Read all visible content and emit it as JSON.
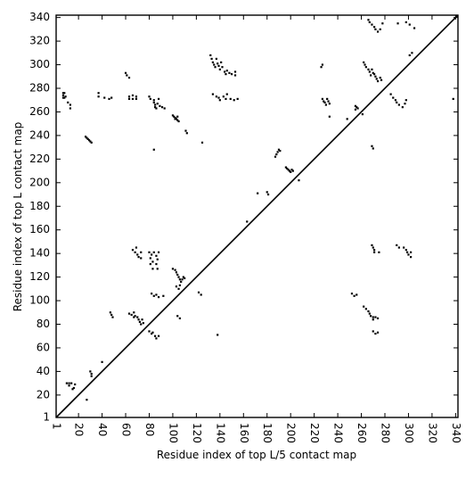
{
  "chart_data": {
    "type": "scatter",
    "title": "",
    "xlabel": "Residue index of top L/5 contact map",
    "ylabel": "Residue index of top L contact map",
    "xlim": [
      1,
      342
    ],
    "ylim": [
      1,
      342
    ],
    "x_ticks": [
      1,
      20,
      40,
      60,
      80,
      100,
      120,
      140,
      160,
      180,
      200,
      220,
      240,
      260,
      280,
      300,
      320,
      340
    ],
    "y_ticks": [
      1,
      20,
      40,
      60,
      80,
      100,
      120,
      140,
      160,
      180,
      200,
      220,
      240,
      260,
      280,
      300,
      320,
      340
    ],
    "x_tick_labels": [
      "1",
      "20",
      "40",
      "60",
      "80",
      "100",
      "120",
      "140",
      "160",
      "180",
      "200",
      "220",
      "240",
      "260",
      "280",
      "300",
      "320",
      "340"
    ],
    "y_tick_labels": [
      "1",
      "20",
      "40",
      "60",
      "80",
      "100",
      "120",
      "140",
      "160",
      "180",
      "200",
      "220",
      "240",
      "260",
      "280",
      "300",
      "320",
      "340"
    ],
    "grid": false,
    "diagonal": true,
    "marker_color": "#000000",
    "series": [
      {
        "name": "",
        "points": [
          [
            7,
            276
          ],
          [
            7,
            274
          ],
          [
            7,
            272
          ],
          [
            8,
            276
          ],
          [
            8,
            272
          ],
          [
            9,
            273
          ],
          [
            11,
            268
          ],
          [
            13,
            266
          ],
          [
            13,
            263
          ],
          [
            37,
            276
          ],
          [
            37,
            273
          ],
          [
            42,
            272
          ],
          [
            46,
            271
          ],
          [
            48,
            272
          ],
          [
            60,
            293
          ],
          [
            61,
            291
          ],
          [
            63,
            289
          ],
          [
            63,
            273
          ],
          [
            63,
            271
          ],
          [
            66,
            274
          ],
          [
            66,
            271
          ],
          [
            69,
            273
          ],
          [
            69,
            271
          ],
          [
            80,
            273
          ],
          [
            81,
            271
          ],
          [
            84,
            270
          ],
          [
            84,
            268
          ],
          [
            85,
            266
          ],
          [
            85,
            264
          ],
          [
            86,
            263
          ],
          [
            87,
            267
          ],
          [
            88,
            271
          ],
          [
            89,
            265
          ],
          [
            91,
            264
          ],
          [
            93,
            263
          ],
          [
            100,
            257
          ],
          [
            101,
            256
          ],
          [
            102,
            255
          ],
          [
            103,
            254
          ],
          [
            104,
            253
          ],
          [
            105,
            252
          ],
          [
            102,
            254
          ],
          [
            104,
            256
          ],
          [
            111,
            244
          ],
          [
            112,
            242
          ],
          [
            125,
            234
          ],
          [
            84,
            228
          ],
          [
            26,
            239
          ],
          [
            27,
            238
          ],
          [
            28,
            237
          ],
          [
            29,
            236
          ],
          [
            30,
            235
          ],
          [
            31,
            234
          ],
          [
            132,
            308
          ],
          [
            133,
            305
          ],
          [
            134,
            302
          ],
          [
            135,
            300
          ],
          [
            136,
            298
          ],
          [
            137,
            305
          ],
          [
            138,
            301
          ],
          [
            139,
            299
          ],
          [
            140,
            296
          ],
          [
            141,
            302
          ],
          [
            142,
            298
          ],
          [
            144,
            294
          ],
          [
            145,
            292
          ],
          [
            146,
            295
          ],
          [
            148,
            293
          ],
          [
            150,
            292
          ],
          [
            153,
            294
          ],
          [
            153,
            291
          ],
          [
            134,
            275
          ],
          [
            137,
            273
          ],
          [
            139,
            272
          ],
          [
            140,
            270
          ],
          [
            143,
            273
          ],
          [
            145,
            271
          ],
          [
            146,
            275
          ],
          [
            149,
            271
          ],
          [
            152,
            270
          ],
          [
            155,
            271
          ],
          [
            187,
            222
          ],
          [
            188,
            224
          ],
          [
            189,
            226
          ],
          [
            190,
            228
          ],
          [
            191,
            227
          ],
          [
            196,
            213
          ],
          [
            197,
            212
          ],
          [
            198,
            211
          ],
          [
            199,
            210
          ],
          [
            200,
            209
          ],
          [
            201,
            211
          ],
          [
            202,
            210
          ],
          [
            207,
            202
          ],
          [
            172,
            191
          ],
          [
            180,
            192
          ],
          [
            181,
            190
          ],
          [
            163,
            167
          ],
          [
            226,
            298
          ],
          [
            227,
            300
          ],
          [
            227,
            271
          ],
          [
            228,
            269
          ],
          [
            229,
            268
          ],
          [
            231,
            271
          ],
          [
            232,
            269
          ],
          [
            233,
            267
          ],
          [
            230,
            266
          ],
          [
            233,
            256
          ],
          [
            248,
            254
          ],
          [
            255,
            265
          ],
          [
            256,
            264
          ],
          [
            255,
            262
          ],
          [
            257,
            263
          ],
          [
            261,
            258
          ],
          [
            262,
            302
          ],
          [
            263,
            300
          ],
          [
            264,
            298
          ],
          [
            266,
            296
          ],
          [
            267,
            294
          ],
          [
            269,
            296
          ],
          [
            271,
            292
          ],
          [
            272,
            290
          ],
          [
            273,
            288
          ],
          [
            274,
            286
          ],
          [
            276,
            289
          ],
          [
            277,
            287
          ],
          [
            268,
            291
          ],
          [
            270,
            293
          ],
          [
            266,
            338
          ],
          [
            267,
            336
          ],
          [
            269,
            334
          ],
          [
            271,
            332
          ],
          [
            272,
            330
          ],
          [
            274,
            328
          ],
          [
            276,
            330
          ],
          [
            278,
            335
          ],
          [
            291,
            335
          ],
          [
            298,
            336
          ],
          [
            301,
            334
          ],
          [
            305,
            331
          ],
          [
            285,
            275
          ],
          [
            287,
            272
          ],
          [
            289,
            270
          ],
          [
            290,
            268
          ],
          [
            292,
            266
          ],
          [
            295,
            264
          ],
          [
            297,
            267
          ],
          [
            298,
            270
          ],
          [
            301,
            308
          ],
          [
            303,
            310
          ],
          [
            269,
            231
          ],
          [
            270,
            229
          ],
          [
            338,
            271
          ],
          [
            10,
            30
          ],
          [
            12,
            30
          ],
          [
            14,
            30
          ],
          [
            12,
            28
          ],
          [
            16,
            26
          ],
          [
            17,
            29
          ],
          [
            15,
            25
          ],
          [
            27,
            16
          ],
          [
            30,
            40
          ],
          [
            31,
            38
          ],
          [
            31,
            36
          ],
          [
            40,
            48
          ],
          [
            47,
            90
          ],
          [
            48,
            88
          ],
          [
            49,
            86
          ],
          [
            63,
            89
          ],
          [
            65,
            88
          ],
          [
            67,
            90
          ],
          [
            67,
            86
          ],
          [
            68,
            87
          ],
          [
            70,
            86
          ],
          [
            71,
            84
          ],
          [
            72,
            82
          ],
          [
            73,
            80
          ],
          [
            75,
            81
          ],
          [
            74,
            84
          ],
          [
            80,
            74
          ],
          [
            82,
            72
          ],
          [
            83,
            73
          ],
          [
            85,
            70
          ],
          [
            86,
            68
          ],
          [
            88,
            70
          ],
          [
            82,
            106
          ],
          [
            84,
            104
          ],
          [
            86,
            105
          ],
          [
            88,
            103
          ],
          [
            92,
            104
          ],
          [
            66,
            143
          ],
          [
            68,
            141
          ],
          [
            69,
            145
          ],
          [
            70,
            139
          ],
          [
            71,
            137
          ],
          [
            73,
            141
          ],
          [
            73,
            136
          ],
          [
            80,
            141
          ],
          [
            82,
            139
          ],
          [
            81,
            136
          ],
          [
            83,
            133
          ],
          [
            84,
            141
          ],
          [
            86,
            138
          ],
          [
            87,
            135
          ],
          [
            88,
            141
          ],
          [
            81,
            131
          ],
          [
            83,
            127
          ],
          [
            86,
            131
          ],
          [
            87,
            127
          ],
          [
            100,
            127
          ],
          [
            102,
            126
          ],
          [
            103,
            124
          ],
          [
            104,
            122
          ],
          [
            105,
            120
          ],
          [
            106,
            118
          ],
          [
            107,
            116
          ],
          [
            108,
            118
          ],
          [
            109,
            120
          ],
          [
            110,
            119
          ],
          [
            103,
            112
          ],
          [
            105,
            110
          ],
          [
            106,
            113
          ],
          [
            104,
            87
          ],
          [
            106,
            85
          ],
          [
            122,
            107
          ],
          [
            124,
            105
          ],
          [
            138,
            71
          ],
          [
            252,
            106
          ],
          [
            254,
            104
          ],
          [
            256,
            105
          ],
          [
            262,
            95
          ],
          [
            264,
            93
          ],
          [
            266,
            91
          ],
          [
            267,
            89
          ],
          [
            268,
            87
          ],
          [
            270,
            86
          ],
          [
            270,
            84
          ],
          [
            272,
            86
          ],
          [
            274,
            85
          ],
          [
            270,
            74
          ],
          [
            272,
            72
          ],
          [
            274,
            73
          ],
          [
            269,
            147
          ],
          [
            270,
            145
          ],
          [
            271,
            143
          ],
          [
            271,
            141
          ],
          [
            275,
            141
          ],
          [
            290,
            147
          ],
          [
            292,
            145
          ],
          [
            296,
            145
          ],
          [
            298,
            143
          ],
          [
            299,
            141
          ],
          [
            300,
            139
          ],
          [
            302,
            141
          ],
          [
            302,
            137
          ]
        ]
      }
    ]
  }
}
